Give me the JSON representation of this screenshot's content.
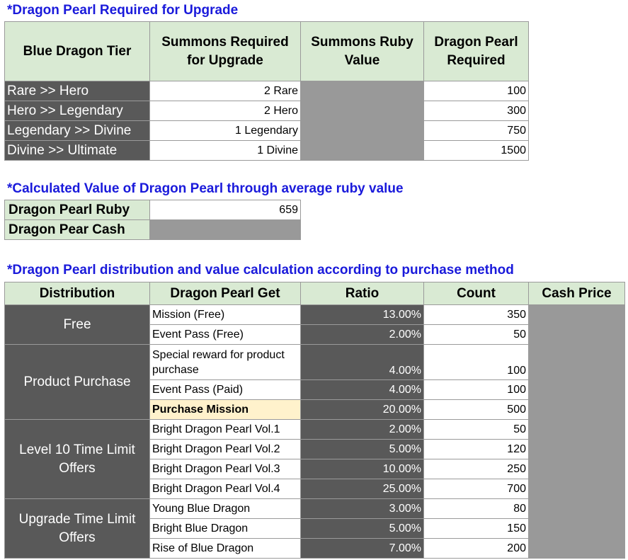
{
  "upgrade": {
    "heading": "*Dragon Pearl Required for Upgrade",
    "headers": [
      "Blue Dragon Tier",
      "Summons Required for Upgrade",
      "Summons Ruby Value",
      "Dragon Pearl Required"
    ],
    "rows": [
      {
        "tier": "Rare >> Hero",
        "summons": "2 Rare",
        "pearl": "100"
      },
      {
        "tier": "Hero >> Legendary",
        "summons": "2 Hero",
        "pearl": "300"
      },
      {
        "tier": "Legendary >> Divine",
        "summons": "1 Legendary",
        "pearl": "750"
      },
      {
        "tier": "Divine >> Ultimate",
        "summons": "1 Divine",
        "pearl": "1500"
      }
    ]
  },
  "value": {
    "heading": "*Calculated Value of Dragon Pearl through average ruby value",
    "ruby_label": "Dragon Pearl Ruby",
    "ruby_value": "659",
    "cash_label": "Dragon Pear Cash"
  },
  "distribution": {
    "heading": "*Dragon Pearl distribution and value calculation according to purchase method",
    "headers": [
      "Distribution",
      "Dragon Pearl Get",
      "Ratio",
      "Count",
      "Cash Price"
    ],
    "groups": [
      "Free",
      "Product Purchase",
      "Level 10 Time Limit Offers",
      "Upgrade Time Limit Offers"
    ],
    "rows": [
      {
        "item": "Mission (Free)",
        "ratio": "13.00%",
        "count": "350"
      },
      {
        "item": "Event Pass (Free)",
        "ratio": "2.00%",
        "count": "50"
      },
      {
        "item": "Special reward for product  purchase",
        "ratio": "4.00%",
        "count": "100"
      },
      {
        "item": "Event Pass (Paid)",
        "ratio": "4.00%",
        "count": "100"
      },
      {
        "item": "Purchase Mission",
        "ratio": "20.00%",
        "count": "500"
      },
      {
        "item": "Bright Dragon Pearl Vol.1",
        "ratio": "2.00%",
        "count": "50"
      },
      {
        "item": "Bright Dragon Pearl Vol.2",
        "ratio": "5.00%",
        "count": "120"
      },
      {
        "item": "Bright Dragon Pearl Vol.3",
        "ratio": "10.00%",
        "count": "250"
      },
      {
        "item": "Bright Dragon Pearl Vol.4",
        "ratio": "25.00%",
        "count": "700"
      },
      {
        "item": "Young Blue Dragon",
        "ratio": "3.00%",
        "count": "80"
      },
      {
        "item": "Bright Blue Dragon",
        "ratio": "5.00%",
        "count": "150"
      },
      {
        "item": "Rise of Blue Dragon",
        "ratio": "7.00%",
        "count": "200"
      }
    ]
  }
}
